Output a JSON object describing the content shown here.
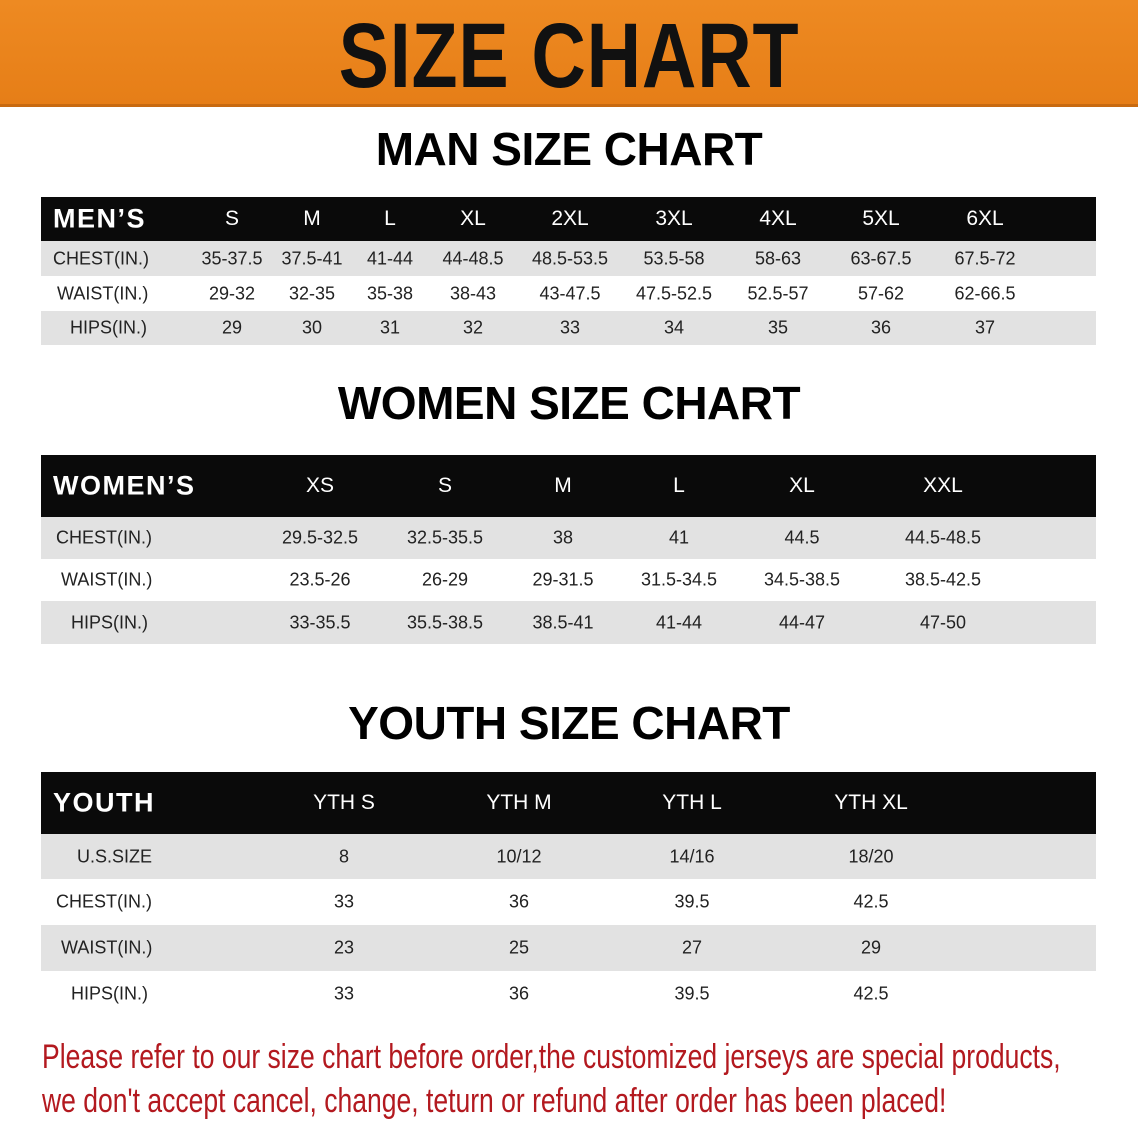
{
  "banner": {
    "title": "SIZE CHART",
    "color": "#e98420"
  },
  "men": {
    "title": "MAN SIZE CHART",
    "header": [
      "MEN’S",
      "S",
      "M",
      "L",
      "XL",
      "2XL",
      "3XL",
      "4XL",
      "5XL",
      "6XL"
    ],
    "rows": [
      [
        "CHEST(IN.)",
        "35-37.5",
        "37.5-41",
        "41-44",
        "44-48.5",
        "48.5-53.5",
        "53.5-58",
        "58-63",
        "63-67.5",
        "67.5-72"
      ],
      [
        "WAIST(IN.)",
        "29-32",
        "32-35",
        "35-38",
        "38-43",
        "43-47.5",
        "47.5-52.5",
        "52.5-57",
        "57-62",
        "62-66.5"
      ],
      [
        "HIPS(IN.)",
        "29",
        "30",
        "31",
        "32",
        "33",
        "34",
        "35",
        "36",
        "37"
      ]
    ]
  },
  "women": {
    "title": "WOMEN SIZE CHART",
    "header": [
      "WOMEN’S",
      "XS",
      "S",
      "M",
      "L",
      "XL",
      "XXL"
    ],
    "rows": [
      [
        "CHEST(IN.)",
        "29.5-32.5",
        "32.5-35.5",
        "38",
        "41",
        "44.5",
        "44.5-48.5"
      ],
      [
        "WAIST(IN.)",
        "23.5-26",
        "26-29",
        "29-31.5",
        "31.5-34.5",
        "34.5-38.5",
        "38.5-42.5"
      ],
      [
        "HIPS(IN.)",
        "33-35.5",
        "35.5-38.5",
        "38.5-41",
        "41-44",
        "44-47",
        "47-50"
      ]
    ]
  },
  "youth": {
    "title": "YOUTH SIZE CHART",
    "header": [
      "YOUTH",
      "YTH S",
      "YTH M",
      "YTH L",
      "YTH XL"
    ],
    "rows": [
      [
        "U.S.SIZE",
        "8",
        "10/12",
        "14/16",
        "18/20"
      ],
      [
        "CHEST(IN.)",
        "33",
        "36",
        "39.5",
        "42.5"
      ],
      [
        "WAIST(IN.)",
        "23",
        "25",
        "27",
        "29"
      ],
      [
        "HIPS(IN.)",
        "33",
        "36",
        "39.5",
        "42.5"
      ]
    ]
  },
  "notice": {
    "line1": "Please refer to our size chart before order,the customized jerseys are special products,",
    "line2": "we don't accept cancel, change, teturn or refund after order has been placed!",
    "color": "#b3191f"
  }
}
